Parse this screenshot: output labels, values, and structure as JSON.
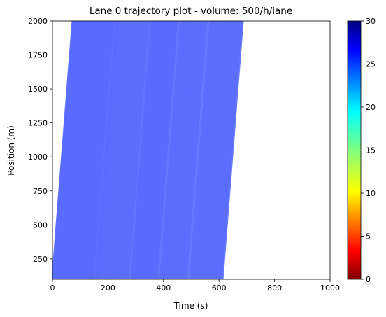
{
  "chart_data": {
    "type": "line",
    "title": "Lane 0 trajectory plot - volume: 500/h/lane",
    "xlabel": "Time (s)",
    "ylabel": "Position (m)",
    "xlim": [
      0,
      1000
    ],
    "ylim": [
      100,
      2000
    ],
    "x_ticks": [
      0,
      200,
      400,
      600,
      800,
      1000
    ],
    "x_tick_labels": [
      "0",
      "200",
      "400",
      "600",
      "800",
      "1000"
    ],
    "y_ticks": [
      250,
      500,
      750,
      1000,
      1250,
      1500,
      1750,
      2000
    ],
    "y_tick_labels": [
      "250",
      "500",
      "750",
      "1000",
      "1250",
      "1500",
      "1750",
      "2000"
    ],
    "grid": false,
    "trajectory_speed": 26,
    "trajectory_entry_times": [
      0,
      2,
      5,
      8,
      11,
      14,
      17,
      20,
      23,
      26,
      29,
      32,
      35,
      38,
      41,
      44,
      47,
      50,
      53,
      56,
      59,
      62,
      65,
      68,
      71,
      74,
      77,
      80,
      83,
      86,
      89,
      92,
      95,
      98,
      101,
      104,
      107,
      110,
      113,
      116,
      119,
      122,
      125,
      128,
      131,
      134,
      137,
      140,
      143,
      146,
      150,
      155,
      158,
      161,
      164,
      168,
      172,
      176,
      180,
      184,
      188,
      192,
      196,
      200,
      204,
      208,
      212,
      216,
      220,
      224,
      228,
      232,
      236,
      240,
      244,
      248,
      252,
      256,
      260,
      264,
      268,
      272,
      276,
      282,
      285,
      288,
      291,
      294,
      297,
      300,
      303,
      306,
      309,
      312,
      315,
      318,
      321,
      324,
      327,
      330,
      333,
      336,
      339,
      342,
      345,
      348,
      351,
      354,
      357,
      360,
      363,
      366,
      369,
      372,
      375,
      378,
      385,
      389,
      393,
      397,
      401,
      405,
      409,
      413,
      417,
      421,
      425,
      429,
      433,
      437,
      441,
      445,
      449,
      453,
      457,
      461,
      465,
      469,
      473,
      477,
      481,
      485,
      492,
      496,
      500,
      504,
      508,
      512,
      516,
      520,
      524,
      528,
      532,
      536,
      540,
      544,
      548,
      552,
      556,
      560,
      564,
      568,
      572,
      576,
      580,
      584,
      588,
      592,
      596,
      600,
      604,
      608,
      612
    ],
    "colorbar": {
      "min": 0,
      "max": 30,
      "ticks": [
        0,
        5,
        10,
        15,
        20,
        25,
        30
      ],
      "tick_labels": [
        "0",
        "5",
        "10",
        "15",
        "20",
        "25",
        "30"
      ],
      "colormap": "jet_r"
    }
  }
}
